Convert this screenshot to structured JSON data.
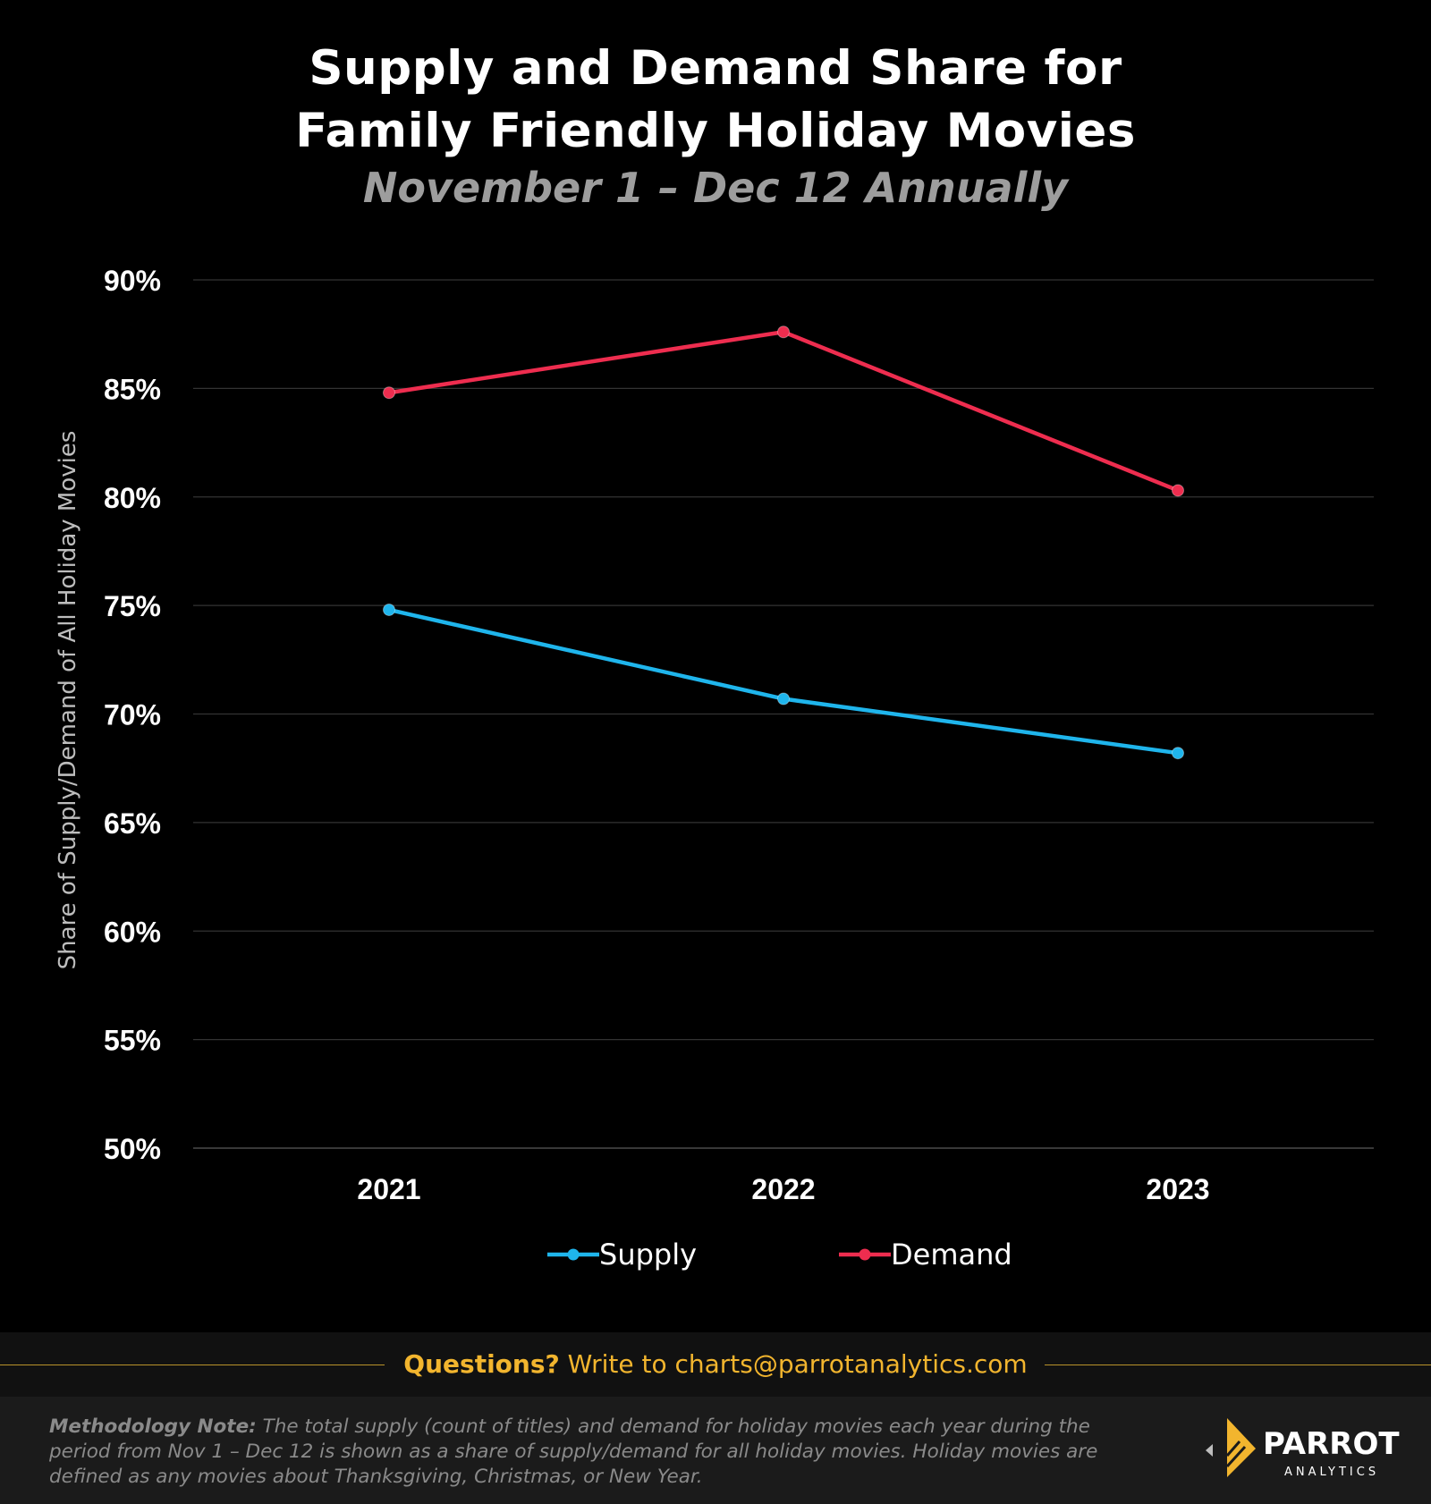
{
  "header": {
    "title_line1": "Supply and Demand Share for",
    "title_line2": "Family Friendly Holiday Movies",
    "subtitle": "November  1 – Dec 12 Annually"
  },
  "chart_data": {
    "type": "line",
    "x": [
      "2021",
      "2022",
      "2023"
    ],
    "ylabel": "Share of Supply/Demand of All Holiday Movies",
    "ylim": [
      50,
      90
    ],
    "yticks": [
      90,
      85,
      80,
      75,
      70,
      65,
      60,
      55,
      50
    ],
    "ytick_labels": [
      "90%",
      "85%",
      "80%",
      "75%",
      "70%",
      "65%",
      "60%",
      "55%",
      "50%"
    ],
    "grid": true,
    "legend_position": "bottom",
    "series": [
      {
        "name": "Supply",
        "values": [
          74.8,
          70.7,
          68.2
        ],
        "color": "#1fb5ec"
      },
      {
        "name": "Demand",
        "values": [
          84.8,
          87.6,
          80.3
        ],
        "color": "#ee2d4f"
      }
    ]
  },
  "footer": {
    "questions_label": "Questions?",
    "contact_text": "Write to charts@parrotanalytics.com",
    "methodology_label": "Methodology Note:",
    "methodology_text": "The total supply (count of titles) and demand for holiday movies each year during the period from Nov 1 – Dec 12 is shown as a share of supply/demand for all holiday movies.  Holiday movies are defined as any movies about Thanksgiving, Christmas, or New Year."
  },
  "logo": {
    "name": "PARROT",
    "tagline": "ANALYTICS",
    "accent_color": "#f2b52e"
  }
}
